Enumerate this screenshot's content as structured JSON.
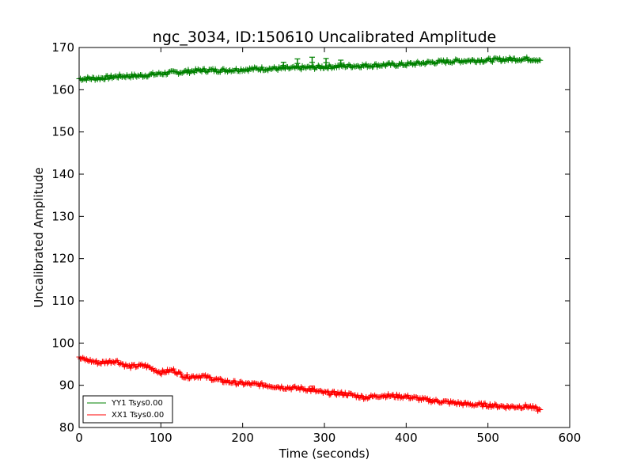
{
  "chart_data": {
    "type": "line",
    "title": "ngc_3034, ID:150610 Uncalibrated Amplitude",
    "xlabel": "Time (seconds)",
    "ylabel": "Uncalibrated Amplitude",
    "xlim": [
      0,
      600
    ],
    "ylim": [
      80,
      170
    ],
    "xticks": [
      0,
      100,
      200,
      300,
      400,
      500,
      600
    ],
    "yticks": [
      80,
      90,
      100,
      110,
      120,
      130,
      140,
      150,
      160,
      170
    ],
    "grid": false,
    "legend_location": "lower-left",
    "series": [
      {
        "name": "YY1 Tsys0.00",
        "color": "#008000",
        "marker": "+",
        "x": [
          0,
          25,
          50,
          75,
          100,
          125,
          150,
          175,
          200,
          225,
          250,
          275,
          300,
          325,
          350,
          375,
          400,
          425,
          450,
          475,
          500,
          525,
          550,
          565
        ],
        "y": [
          162.6,
          162.7,
          163.2,
          163.3,
          163.8,
          164.2,
          164.6,
          164.6,
          164.8,
          165.0,
          165.0,
          165.2,
          165.4,
          165.6,
          165.7,
          165.9,
          166.0,
          166.4,
          166.7,
          166.9,
          167.0,
          167.2,
          167.3,
          167.1
        ],
        "spikes": [
          {
            "x": 250,
            "y": 166.5
          },
          {
            "x": 267,
            "y": 167.3
          },
          {
            "x": 285,
            "y": 167.7
          },
          {
            "x": 302,
            "y": 167.4
          },
          {
            "x": 320,
            "y": 167.0
          }
        ]
      },
      {
        "name": "XX1 Tsys0.00",
        "color": "#ff0000",
        "marker": "+",
        "x": [
          0,
          25,
          45,
          60,
          80,
          100,
          115,
          130,
          150,
          175,
          200,
          225,
          250,
          275,
          300,
          325,
          350,
          370,
          400,
          425,
          450,
          475,
          500,
          525,
          550,
          565
        ],
        "y": [
          96.4,
          95.3,
          95.8,
          94.4,
          94.7,
          93.0,
          93.6,
          92.0,
          92.2,
          91.0,
          90.4,
          90.1,
          89.5,
          89.2,
          88.2,
          88.0,
          87.1,
          87.6,
          87.3,
          86.5,
          86.0,
          85.5,
          85.3,
          84.9,
          85.0,
          84.0
        ],
        "spikes": [
          {
            "x": 285,
            "y": 89.8
          }
        ]
      }
    ]
  }
}
